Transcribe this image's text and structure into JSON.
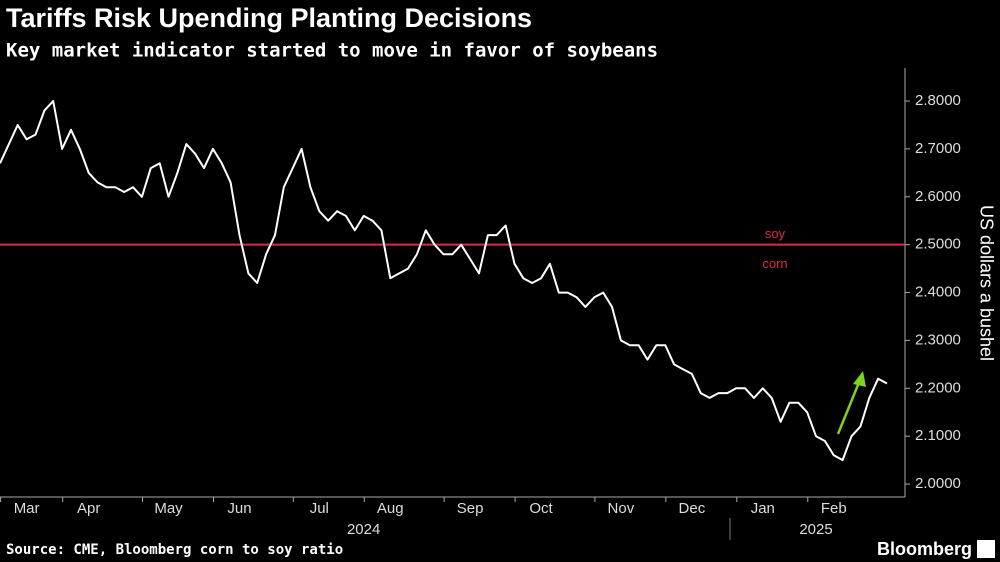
{
  "chart_data": {
    "type": "line",
    "title": "Tariffs Risk Upending Planting Decisions",
    "subtitle": "Key market indicator started to move in favor of soybeans",
    "y_label": "US dollars a bushel",
    "source": "Source: CME, Bloomberg corn to soy ratio",
    "brand": "Bloomberg",
    "ylim": [
      1.973,
      2.869
    ],
    "yticks": [
      {
        "value": 2.0,
        "label": "2.0000"
      },
      {
        "value": 2.1,
        "label": "2.1000"
      },
      {
        "value": 2.2,
        "label": "2.2000"
      },
      {
        "value": 2.3,
        "label": "2.3000"
      },
      {
        "value": 2.4,
        "label": "2.4000"
      },
      {
        "value": 2.5,
        "label": "2.5000"
      },
      {
        "value": 2.6,
        "label": "2.6000"
      },
      {
        "value": 2.7,
        "label": "2.7000"
      },
      {
        "value": 2.8,
        "label": "2.8000"
      }
    ],
    "xticks": [
      {
        "value": 3,
        "label": "Mar"
      },
      {
        "value": 10,
        "label": "Apr"
      },
      {
        "value": 19,
        "label": "May"
      },
      {
        "value": 27,
        "label": "Jun"
      },
      {
        "value": 36,
        "label": "Jul"
      },
      {
        "value": 44,
        "label": "Aug"
      },
      {
        "value": 53,
        "label": "Sep"
      },
      {
        "value": 61,
        "label": "Oct"
      },
      {
        "value": 70,
        "label": "Nov"
      },
      {
        "value": 78,
        "label": "Dec"
      },
      {
        "value": 86,
        "label": "Jan"
      },
      {
        "value": 94,
        "label": "Feb"
      }
    ],
    "years": [
      {
        "value": 41,
        "label": "2024"
      },
      {
        "value": 92,
        "label": "2025"
      }
    ],
    "reference_line": {
      "value": 2.5,
      "color": "#e0294a",
      "label_above": "soy",
      "label_below": "corn"
    },
    "series": [
      {
        "name": "Corn to soy ratio",
        "color": "#ffffff",
        "values": [
          2.67,
          2.71,
          2.75,
          2.72,
          2.73,
          2.78,
          2.8,
          2.7,
          2.74,
          2.7,
          2.65,
          2.63,
          2.62,
          2.62,
          2.61,
          2.62,
          2.6,
          2.66,
          2.67,
          2.6,
          2.65,
          2.71,
          2.69,
          2.66,
          2.7,
          2.67,
          2.63,
          2.52,
          2.44,
          2.42,
          2.48,
          2.52,
          2.62,
          2.66,
          2.7,
          2.62,
          2.57,
          2.55,
          2.57,
          2.56,
          2.53,
          2.56,
          2.55,
          2.53,
          2.43,
          2.44,
          2.45,
          2.48,
          2.53,
          2.5,
          2.48,
          2.48,
          2.5,
          2.47,
          2.44,
          2.52,
          2.52,
          2.54,
          2.46,
          2.43,
          2.42,
          2.43,
          2.46,
          2.4,
          2.4,
          2.39,
          2.37,
          2.39,
          2.4,
          2.37,
          2.3,
          2.29,
          2.29,
          2.26,
          2.29,
          2.29,
          2.25,
          2.24,
          2.23,
          2.19,
          2.18,
          2.19,
          2.19,
          2.2,
          2.2,
          2.18,
          2.2,
          2.18,
          2.13,
          2.17,
          2.17,
          2.15,
          2.1,
          2.09,
          2.06,
          2.05,
          2.1,
          2.12,
          2.18,
          2.22,
          2.21
        ]
      }
    ]
  }
}
